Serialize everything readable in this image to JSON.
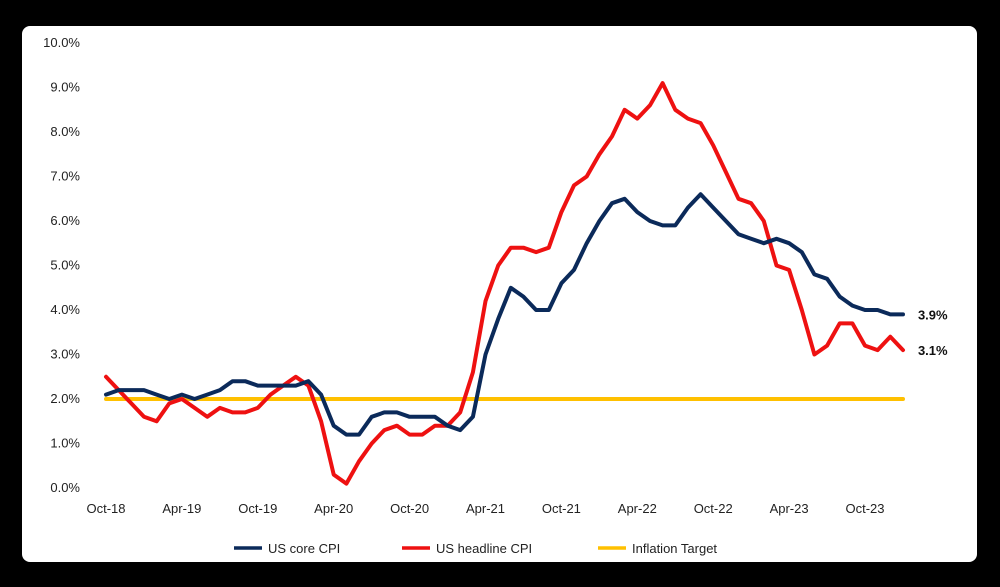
{
  "chart_data": {
    "type": "line",
    "title": "",
    "xlabel": "",
    "ylabel": "",
    "ylim": [
      0,
      10
    ],
    "y_ticks": [
      "0.0%",
      "1.0%",
      "2.0%",
      "3.0%",
      "4.0%",
      "5.0%",
      "6.0%",
      "7.0%",
      "8.0%",
      "9.0%",
      "10.0%"
    ],
    "x_tick_labels": [
      "Oct-18",
      "Apr-19",
      "Oct-19",
      "Apr-20",
      "Oct-20",
      "Apr-21",
      "Oct-21",
      "Apr-22",
      "Oct-22",
      "Apr-23",
      "Oct-23"
    ],
    "months_count": 63,
    "legend_position": "bottom",
    "series": [
      {
        "name": "US core CPI",
        "color": "#0b2a5a",
        "end_label": "3.9%",
        "values": [
          2.1,
          2.2,
          2.2,
          2.2,
          2.1,
          2.0,
          2.1,
          2.0,
          2.1,
          2.2,
          2.4,
          2.4,
          2.3,
          2.3,
          2.3,
          2.3,
          2.4,
          2.1,
          1.4,
          1.2,
          1.2,
          1.6,
          1.7,
          1.7,
          1.6,
          1.6,
          1.6,
          1.4,
          1.3,
          1.6,
          3.0,
          3.8,
          4.5,
          4.3,
          4.0,
          4.0,
          4.6,
          4.9,
          5.5,
          6.0,
          6.4,
          6.5,
          6.2,
          6.0,
          5.9,
          5.9,
          6.3,
          6.6,
          6.3,
          6.0,
          5.7,
          5.6,
          5.5,
          5.6,
          5.5,
          5.3,
          4.8,
          4.7,
          4.3,
          4.1,
          4.0,
          4.0,
          3.9,
          3.9
        ]
      },
      {
        "name": "US headline CPI",
        "color": "#ee1111",
        "end_label": "3.1%",
        "values": [
          2.5,
          2.2,
          1.9,
          1.6,
          1.5,
          1.9,
          2.0,
          1.8,
          1.6,
          1.8,
          1.7,
          1.7,
          1.8,
          2.1,
          2.3,
          2.5,
          2.3,
          1.5,
          0.3,
          0.1,
          0.6,
          1.0,
          1.3,
          1.4,
          1.2,
          1.2,
          1.4,
          1.4,
          1.7,
          2.6,
          4.2,
          5.0,
          5.4,
          5.4,
          5.3,
          5.4,
          6.2,
          6.8,
          7.0,
          7.5,
          7.9,
          8.5,
          8.3,
          8.6,
          9.1,
          8.5,
          8.3,
          8.2,
          7.7,
          7.1,
          6.5,
          6.4,
          6.0,
          5.0,
          4.9,
          4.0,
          3.0,
          3.2,
          3.7,
          3.7,
          3.2,
          3.1,
          3.4,
          3.1
        ]
      },
      {
        "name": "Inflation Target",
        "color": "#ffc000",
        "values": [
          2.0,
          2.0,
          2.0,
          2.0,
          2.0,
          2.0,
          2.0,
          2.0,
          2.0,
          2.0,
          2.0,
          2.0,
          2.0,
          2.0,
          2.0,
          2.0,
          2.0,
          2.0,
          2.0,
          2.0,
          2.0,
          2.0,
          2.0,
          2.0,
          2.0,
          2.0,
          2.0,
          2.0,
          2.0,
          2.0,
          2.0,
          2.0,
          2.0,
          2.0,
          2.0,
          2.0,
          2.0,
          2.0,
          2.0,
          2.0,
          2.0,
          2.0,
          2.0,
          2.0,
          2.0,
          2.0,
          2.0,
          2.0,
          2.0,
          2.0,
          2.0,
          2.0,
          2.0,
          2.0,
          2.0,
          2.0,
          2.0,
          2.0,
          2.0,
          2.0,
          2.0,
          2.0,
          2.0,
          2.0
        ]
      }
    ]
  }
}
